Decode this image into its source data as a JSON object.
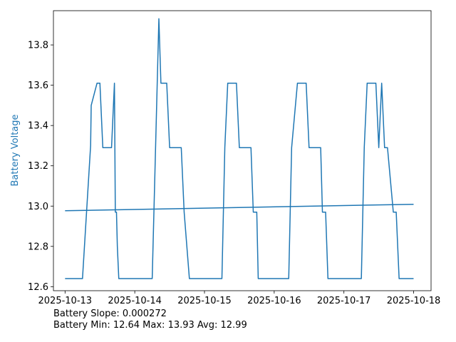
{
  "chart_data": {
    "type": "line",
    "title": "",
    "xlabel": "",
    "ylabel": "Battery Voltage",
    "ylabel_color": "#1f77b4",
    "line_color": "#1f77b4",
    "x_axis": "date",
    "xlim": [
      "2025-10-12T20:00",
      "2025-10-18T06:00"
    ],
    "ylim": [
      12.58,
      13.97
    ],
    "x_ticks": [
      "2025-10-13",
      "2025-10-14",
      "2025-10-15",
      "2025-10-16",
      "2025-10-17",
      "2025-10-18"
    ],
    "y_ticks": [
      "12.6",
      "12.8",
      "13.0",
      "13.2",
      "13.4",
      "13.6",
      "13.8"
    ],
    "y_tick_values": [
      12.6,
      12.8,
      13.0,
      13.2,
      13.4,
      13.6,
      13.8
    ],
    "grid": false,
    "legend": "none",
    "series": [
      {
        "kind": "voltage",
        "x": [
          "2025-10-13T00:00",
          "2025-10-13T06:00",
          "2025-10-13T08:48",
          "2025-10-13T09:00",
          "2025-10-13T11:00",
          "2025-10-13T12:00",
          "2025-10-13T13:00",
          "2025-10-13T16:00",
          "2025-10-13T17:00",
          "2025-10-13T17:18",
          "2025-10-13T17:42",
          "2025-10-13T18:00",
          "2025-10-13T18:30",
          "2025-10-13T19:30",
          "2025-10-14T06:00",
          "2025-10-14T08:18",
          "2025-10-14T09:00",
          "2025-10-14T11:00",
          "2025-10-14T12:00",
          "2025-10-14T16:00",
          "2025-10-14T17:00",
          "2025-10-14T18:48",
          "2025-10-14T19:00",
          "2025-10-15T06:00",
          "2025-10-15T07:00",
          "2025-10-15T08:00",
          "2025-10-15T11:00",
          "2025-10-15T12:00",
          "2025-10-15T16:00",
          "2025-10-15T16:48",
          "2025-10-15T18:00",
          "2025-10-15T18:30",
          "2025-10-16T05:00",
          "2025-10-16T06:00",
          "2025-10-16T08:00",
          "2025-10-16T11:00",
          "2025-10-16T12:00",
          "2025-10-16T16:00",
          "2025-10-16T16:36",
          "2025-10-16T17:42",
          "2025-10-16T18:30",
          "2025-10-17T06:00",
          "2025-10-17T07:00",
          "2025-10-17T08:00",
          "2025-10-17T11:00",
          "2025-10-17T12:00",
          "2025-10-17T13:00",
          "2025-10-17T14:00",
          "2025-10-17T15:00",
          "2025-10-17T17:00",
          "2025-10-17T18:00",
          "2025-10-17T19:00",
          "2025-10-17T20:00",
          "2025-10-17T23:59"
        ],
        "y": [
          12.64,
          12.64,
          13.3,
          13.5,
          13.61,
          13.61,
          13.29,
          13.29,
          13.61,
          12.97,
          12.97,
          12.8,
          12.64,
          12.64,
          12.64,
          13.93,
          13.61,
          13.61,
          13.29,
          13.29,
          12.97,
          12.64,
          12.64,
          12.64,
          13.29,
          13.61,
          13.61,
          13.29,
          13.29,
          12.97,
          12.97,
          12.64,
          12.64,
          13.29,
          13.61,
          13.61,
          13.29,
          13.29,
          12.97,
          12.97,
          12.64,
          12.64,
          13.29,
          13.61,
          13.61,
          13.29,
          13.61,
          13.29,
          13.29,
          12.97,
          12.97,
          12.64,
          12.64,
          12.64
        ]
      },
      {
        "kind": "trend",
        "x": [
          "2025-10-13T00:00",
          "2025-10-17T23:59"
        ],
        "y": [
          12.977,
          13.009
        ]
      }
    ]
  },
  "stats": {
    "slope_line": "Battery Slope: 0.000272",
    "summary_line": "Battery Min: 12.64 Max: 13.93 Avg: 12.99"
  }
}
